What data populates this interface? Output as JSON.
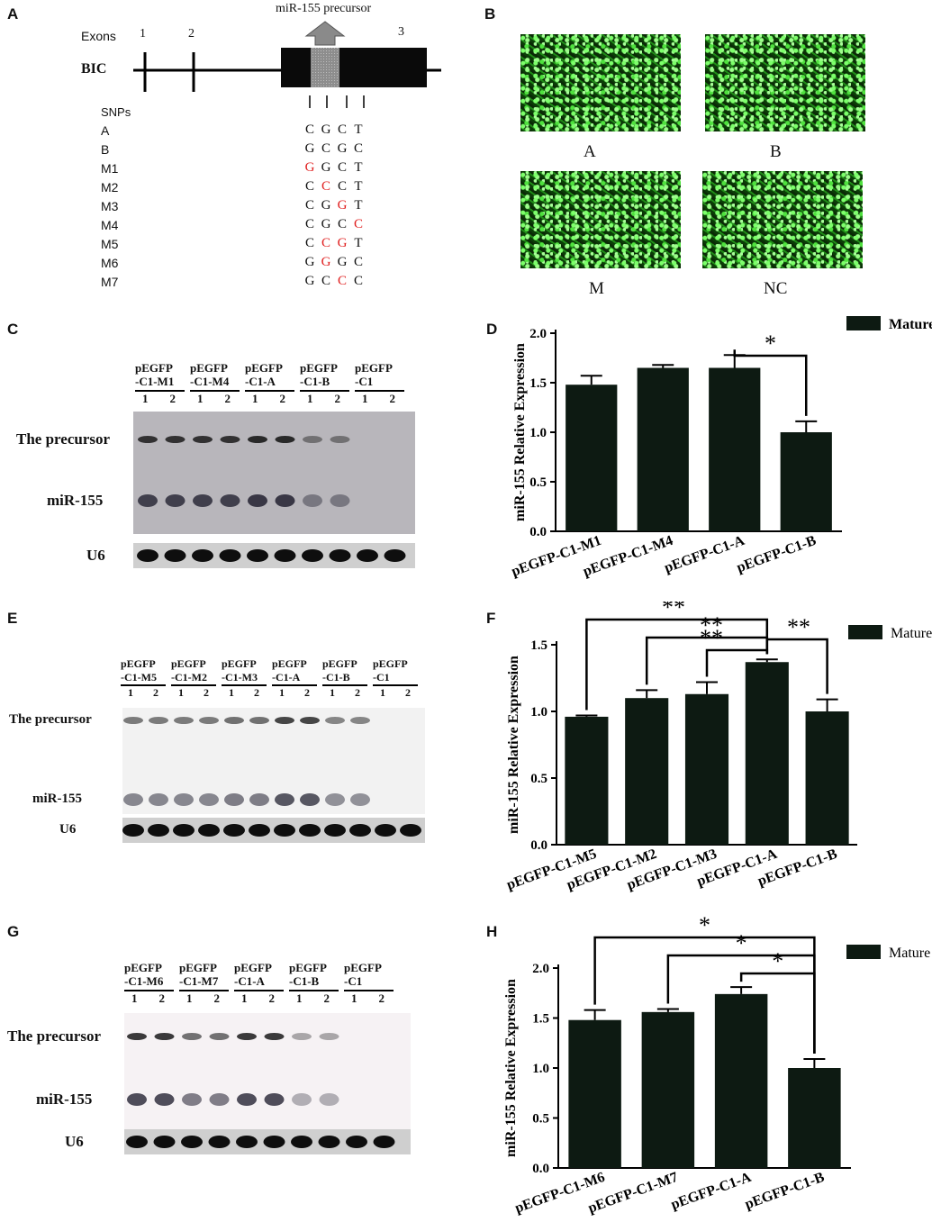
{
  "panels": {
    "A": "A",
    "B": "B",
    "C": "C",
    "D": "D",
    "E": "E",
    "F": "F",
    "G": "G",
    "H": "H"
  },
  "panel_a": {
    "exons_label": "Exons",
    "exon_numbers": [
      "1",
      "2",
      "3"
    ],
    "gene_label": "BIC",
    "precursor_label": "miR-155 precursor",
    "snps_label": "SNPs",
    "rows": [
      {
        "name": "A",
        "bases": [
          "C",
          "G",
          "C",
          "T"
        ],
        "red": [
          false,
          false,
          false,
          false
        ]
      },
      {
        "name": "B",
        "bases": [
          "G",
          "C",
          "G",
          "C"
        ],
        "red": [
          false,
          false,
          false,
          false
        ]
      },
      {
        "name": "M1",
        "bases": [
          "G",
          "G",
          "C",
          "T"
        ],
        "red": [
          true,
          false,
          false,
          false
        ]
      },
      {
        "name": "M2",
        "bases": [
          "C",
          "C",
          "C",
          "T"
        ],
        "red": [
          false,
          true,
          false,
          false
        ]
      },
      {
        "name": "M3",
        "bases": [
          "C",
          "G",
          "G",
          "T"
        ],
        "red": [
          false,
          false,
          true,
          false
        ]
      },
      {
        "name": "M4",
        "bases": [
          "C",
          "G",
          "C",
          "C"
        ],
        "red": [
          false,
          false,
          false,
          true
        ]
      },
      {
        "name": "M5",
        "bases": [
          "C",
          "C",
          "G",
          "T"
        ],
        "red": [
          false,
          true,
          true,
          false
        ]
      },
      {
        "name": "M6",
        "bases": [
          "G",
          "G",
          "G",
          "C"
        ],
        "red": [
          false,
          true,
          false,
          false
        ]
      },
      {
        "name": "M7",
        "bases": [
          "G",
          "C",
          "C",
          "C"
        ],
        "red": [
          false,
          false,
          true,
          false
        ]
      }
    ]
  },
  "panel_b": {
    "labels": [
      "A",
      "B",
      "M",
      "NC"
    ]
  },
  "blots": {
    "C": {
      "headers": [
        [
          "pEGFP",
          "-C1-M1"
        ],
        [
          "pEGFP",
          "-C1-M4"
        ],
        [
          "pEGFP",
          "-C1-A"
        ],
        [
          "pEGFP",
          "-C1-B"
        ],
        [
          "pEGFP",
          "-C1"
        ]
      ],
      "lane_nums": [
        "1",
        "2"
      ],
      "precursor": "The precursor",
      "mir": "miR-155",
      "u6": "U6"
    },
    "E": {
      "headers": [
        [
          "pEGFP",
          "-C1-M5"
        ],
        [
          "pEGFP",
          "-C1-M2"
        ],
        [
          "pEGFP",
          "-C1-M3"
        ],
        [
          "pEGFP",
          "-C1-A"
        ],
        [
          "pEGFP",
          "-C1-B"
        ],
        [
          "pEGFP",
          "-C1"
        ]
      ],
      "lane_nums": [
        "1",
        "2"
      ],
      "precursor": "The precursor",
      "mir": "miR-155",
      "u6": "U6"
    },
    "G": {
      "headers": [
        [
          "pEGFP",
          "-C1-M6"
        ],
        [
          "pEGFP",
          "-C1-M7"
        ],
        [
          "pEGFP",
          "-C1-A"
        ],
        [
          "pEGFP",
          "-C1-B"
        ],
        [
          "pEGFP",
          "-C1"
        ]
      ],
      "lane_nums": [
        "1",
        "2"
      ],
      "precursor": "The precursor",
      "mir": "miR-155",
      "u6": "U6"
    }
  },
  "chart_data": [
    {
      "panel": "D",
      "type": "bar",
      "categories": [
        "pEGFP-C1-M1",
        "pEGFP-C1-M4",
        "pEGFP-C1-A",
        "pEGFP-C1-B"
      ],
      "values": [
        1.48,
        1.65,
        1.65,
        1.0
      ],
      "errors": [
        0.09,
        0.03,
        0.13,
        0.11
      ],
      "ylabel": "miR-155 Relative Expression",
      "ylim": [
        0,
        2.0
      ],
      "yticks": [
        "0.0",
        "0.5",
        "1.0",
        "1.5",
        "2.0"
      ],
      "legend": "Mature",
      "bar_color": "#0d1a12",
      "significance": [
        {
          "from": 2,
          "to": 3,
          "label": "*"
        }
      ]
    },
    {
      "panel": "F",
      "type": "bar",
      "categories": [
        "pEGFP-C1-M5",
        "pEGFP-C1-M2",
        "pEGFP-C1-M3",
        "pEGFP-C1-A",
        "pEGFP-C1-B"
      ],
      "values": [
        0.96,
        1.1,
        1.13,
        1.37,
        1.0
      ],
      "errors": [
        0.01,
        0.06,
        0.09,
        0.02,
        0.09
      ],
      "ylabel": "miR-155 Relative Expression",
      "ylim": [
        0,
        1.5
      ],
      "yticks": [
        "0.0",
        "0.5",
        "1.0",
        "1.5"
      ],
      "legend": "Mature",
      "bar_color": "#0d1a12",
      "significance": [
        {
          "from": 0,
          "to": 3,
          "label": "**"
        },
        {
          "from": 1,
          "to": 3,
          "label": "**"
        },
        {
          "from": 2,
          "to": 3,
          "label": "**"
        },
        {
          "from": 3,
          "to": 4,
          "label": "**"
        }
      ]
    },
    {
      "panel": "H",
      "type": "bar",
      "categories": [
        "pEGFP-C1-M6",
        "pEGFP-C1-M7",
        "pEGFP-C1-A",
        "pEGFP-C1-B"
      ],
      "values": [
        1.48,
        1.56,
        1.74,
        1.0
      ],
      "errors": [
        0.1,
        0.03,
        0.07,
        0.09
      ],
      "ylabel": "miR-155 Relative Expression",
      "ylim": [
        0,
        2.0
      ],
      "yticks": [
        "0.0",
        "0.5",
        "1.0",
        "1.5",
        "2.0"
      ],
      "legend": "Mature",
      "bar_color": "#0d1a12",
      "significance": [
        {
          "from": 0,
          "to": 3,
          "label": "*"
        },
        {
          "from": 1,
          "to": 3,
          "label": "*"
        },
        {
          "from": 2,
          "to": 3,
          "label": "*"
        }
      ]
    }
  ]
}
